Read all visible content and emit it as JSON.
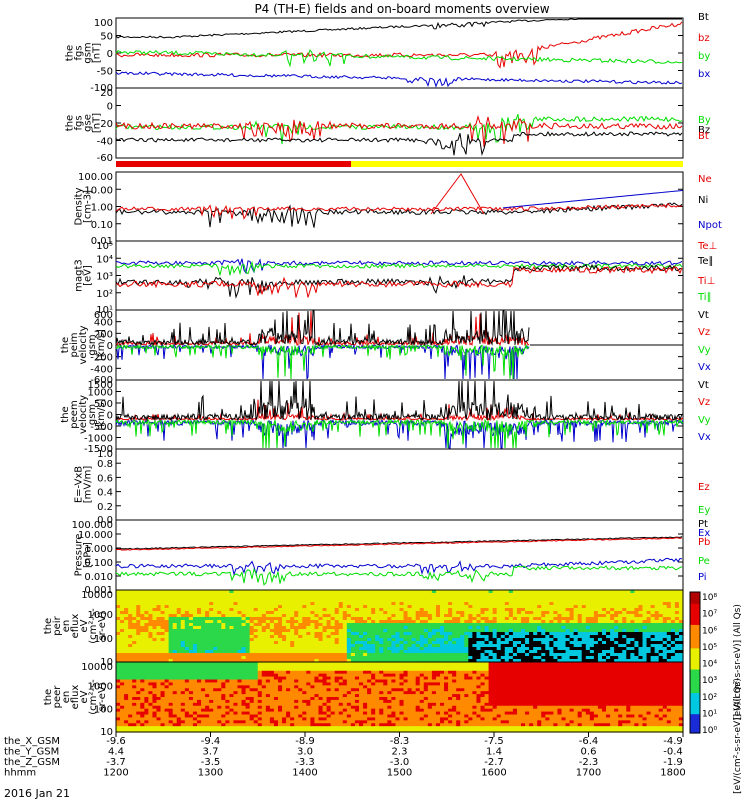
{
  "title": "P4 (TH-E) fields and on-board moments overview",
  "date_label": "2016 Jan 21",
  "colors": {
    "black": "#000000",
    "red": "#e60000",
    "green": "#00dd00",
    "blue": "#0000cc",
    "yellow": "#ffff00"
  },
  "chart_data": [
    {
      "type": "line",
      "id": "fgs_gsm",
      "ylabel": [
        "the",
        "fgs",
        "gsm",
        "[nT]"
      ],
      "ylim": [
        -100,
        100
      ],
      "ticks": [
        "100",
        "50",
        "0",
        "-50",
        "-100"
      ],
      "series": [
        {
          "name": "Bt",
          "color": "black"
        },
        {
          "name": "bz",
          "color": "red"
        },
        {
          "name": "by",
          "color": "green"
        },
        {
          "name": "bx",
          "color": "blue"
        }
      ]
    },
    {
      "type": "line",
      "id": "fgs_gse",
      "ylabel": [
        "the",
        "fgs",
        "gse",
        "[nT]"
      ],
      "ylim": [
        -70,
        40
      ],
      "ticks": [
        "20",
        "0",
        "-20",
        "-40",
        "-60"
      ],
      "series": [
        {
          "name": "By",
          "color": "green"
        },
        {
          "name": "Bz",
          "color": "black"
        },
        {
          "name": "Bt",
          "color": "red"
        }
      ]
    },
    {
      "type": "line",
      "id": "density",
      "ylabel": [
        "Density",
        "[cm-3]"
      ],
      "log": true,
      "ylim": [
        0.01,
        100
      ],
      "ticks": [
        "100.00",
        "10.00",
        "1.00",
        "0.10",
        "0.01"
      ],
      "series": [
        {
          "name": "Ne",
          "color": "red"
        },
        {
          "name": "Ni",
          "color": "black"
        },
        {
          "name": "Npot",
          "color": "blue"
        }
      ]
    },
    {
      "type": "line",
      "id": "temperature",
      "ylabel": [
        "magt3",
        "[eV]"
      ],
      "log": true,
      "ylim": [
        10,
        100000
      ],
      "ticks": [
        "10⁵",
        "10⁴",
        "10³",
        "10²",
        "10¹"
      ],
      "series": [
        {
          "name": "Te⊥",
          "color": "red"
        },
        {
          "name": "Te∥",
          "color": "black"
        },
        {
          "name": "Ti⊥",
          "color": "red"
        },
        {
          "name": "Ti∥",
          "color": "green"
        }
      ]
    },
    {
      "type": "line",
      "id": "peim_velocity",
      "ylabel": [
        "the",
        "peim",
        "velocity",
        "gsm",
        "[km/s]"
      ],
      "ylim": [
        -600,
        600
      ],
      "ticks": [
        "600",
        "400",
        "200",
        "0",
        "-200",
        "-400",
        "-600"
      ],
      "series": [
        {
          "name": "Vt",
          "color": "black"
        },
        {
          "name": "Vz",
          "color": "red"
        },
        {
          "name": "Vy",
          "color": "green"
        },
        {
          "name": "Vx",
          "color": "blue"
        }
      ]
    },
    {
      "type": "line",
      "id": "peem_velocity",
      "ylabel": [
        "the",
        "peem",
        "velocity",
        "gsm",
        "[km/s]"
      ],
      "ylim": [
        -1500,
        1500
      ],
      "ticks": [
        "1500",
        "1000",
        "500",
        "0",
        "-500",
        "-1000",
        "-1500"
      ],
      "series": [
        {
          "name": "Vt",
          "color": "black"
        },
        {
          "name": "Vz",
          "color": "red"
        },
        {
          "name": "Vy",
          "color": "green"
        },
        {
          "name": "Vx",
          "color": "blue"
        }
      ]
    },
    {
      "type": "line",
      "id": "efield",
      "ylabel": [
        "E=-VxB",
        "[mV/m]"
      ],
      "ylim": [
        0,
        1
      ],
      "ticks": [
        "1.0",
        "0.8",
        "0.6",
        "0.4",
        "0.2",
        "0.0"
      ],
      "series": [
        {
          "name": "Ez",
          "color": "red"
        },
        {
          "name": "Ey",
          "color": "green"
        },
        {
          "name": "Ex",
          "color": "blue"
        }
      ]
    },
    {
      "type": "line",
      "id": "pressure",
      "ylabel": [
        "Pressure",
        "[nPa]"
      ],
      "log": true,
      "ylim": [
        0.001,
        100
      ],
      "ticks": [
        "100.000",
        "10.000",
        "1.000",
        "0.100",
        "0.010",
        "0.001"
      ],
      "series": [
        {
          "name": "Pt",
          "color": "black"
        },
        {
          "name": "Pb",
          "color": "red"
        },
        {
          "name": "Pe",
          "color": "green"
        },
        {
          "name": "Pi",
          "color": "blue"
        }
      ]
    },
    {
      "type": "heatmap",
      "id": "peir_eflux",
      "ylabel": [
        "the",
        "peir",
        "en",
        "eflux",
        "eV",
        "(cm²-s-",
        "sr-eV)"
      ],
      "log": true,
      "ticks": [
        "10000",
        "1000",
        "100",
        "10"
      ]
    },
    {
      "type": "heatmap",
      "id": "peer_eflux",
      "ylabel": [
        "the",
        "peer",
        "en",
        "eflux",
        "eV",
        "(cm²-s-",
        "sr-eV)"
      ],
      "log": true,
      "ticks": [
        "10000",
        "1000",
        "100",
        "10"
      ]
    }
  ],
  "colorbar": {
    "ticks": [
      "10⁸",
      "10⁷",
      "10⁶",
      "10⁵",
      "10⁴",
      "10³",
      "10²",
      "10¹",
      "10⁰"
    ],
    "top_label": "[eV/(cm²-s-sr-eV)] (All Qs)",
    "bottom_label": "[eV/(cm²-s-sr-eV)] (All Qs)"
  },
  "axis_rows": [
    {
      "label": "the_X_GSM",
      "values": [
        "-9.6",
        "-9.4",
        "-8.9",
        "-8.3",
        "-7.5",
        "-6.4",
        "-4.9"
      ]
    },
    {
      "label": "the_Y_GSM",
      "values": [
        "4.4",
        "3.7",
        "3.0",
        "2.3",
        "1.4",
        "0.6",
        "-0.4"
      ]
    },
    {
      "label": "the_Z_GSM",
      "values": [
        "-3.7",
        "-3.5",
        "-3.3",
        "-3.0",
        "-2.7",
        "-2.3",
        "-1.9"
      ]
    },
    {
      "label": "hhmm",
      "values": [
        "1200",
        "1300",
        "1400",
        "1500",
        "1600",
        "1700",
        "1800"
      ]
    }
  ]
}
